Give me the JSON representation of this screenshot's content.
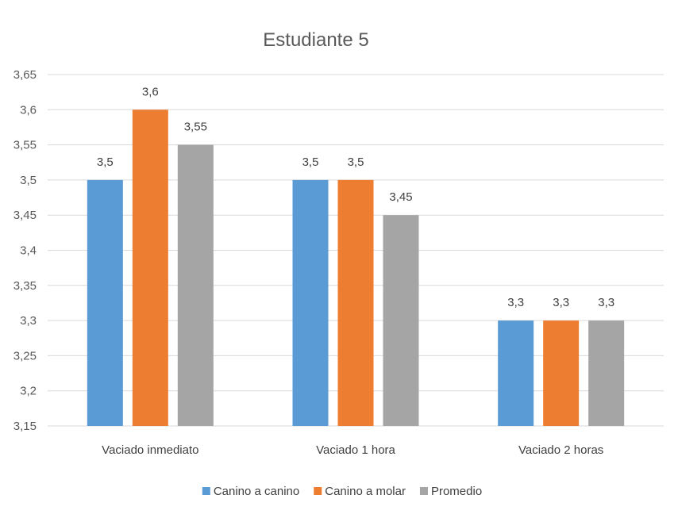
{
  "chart_data": {
    "type": "bar",
    "title": "Estudiante 5",
    "categories": [
      "Vaciado inmediato",
      "Vaciado 1 hora",
      "Vaciado 2 horas"
    ],
    "series": [
      {
        "name": "Canino a canino",
        "color": "#5b9bd5",
        "values": [
          3.5,
          3.5,
          3.3
        ],
        "labels": [
          "3,5",
          "3,5",
          "3,3"
        ]
      },
      {
        "name": "Canino a molar",
        "color": "#ed7d31",
        "values": [
          3.6,
          3.5,
          3.3
        ],
        "labels": [
          "3,6",
          "3,5",
          "3,3"
        ]
      },
      {
        "name": "Promedio",
        "color": "#a5a5a5",
        "values": [
          3.55,
          3.45,
          3.3
        ],
        "labels": [
          "3,55",
          "3,45",
          "3,3"
        ]
      }
    ],
    "ylim": [
      3.15,
      3.65
    ],
    "yticks": [
      3.15,
      3.2,
      3.25,
      3.3,
      3.35,
      3.4,
      3.45,
      3.5,
      3.55,
      3.6,
      3.65
    ],
    "ytick_labels": [
      "3,15",
      "3,2",
      "3,25",
      "3,3",
      "3,35",
      "3,4",
      "3,45",
      "3,5",
      "3,55",
      "3,6",
      "3,65"
    ],
    "xlabel": "",
    "ylabel": "",
    "grid": true,
    "legend_position": "bottom"
  }
}
